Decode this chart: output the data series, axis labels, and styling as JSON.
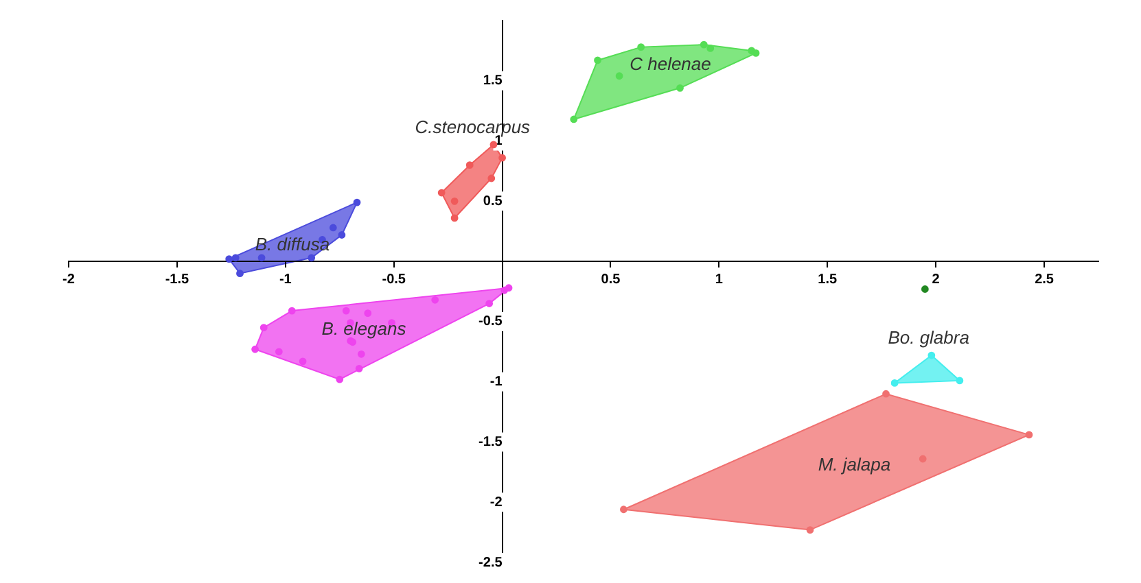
{
  "chart_data": {
    "type": "scatter",
    "xlim": [
      -2,
      2.75
    ],
    "ylim": [
      -2.5,
      2
    ],
    "xticks": [
      -2,
      -1.5,
      -1,
      -0.5,
      0.5,
      1,
      1.5,
      2,
      2.5
    ],
    "yticks": [
      -2.5,
      -2,
      -1.5,
      -1,
      -0.5,
      0.5,
      1,
      1.5
    ],
    "grid": false,
    "legend": false,
    "marker": "circle",
    "series": [
      {
        "name": "B. diffusa",
        "color": "#4b4bdc",
        "x": [
          -1.26,
          -1.23,
          -1.21,
          -1.11,
          -0.88,
          -0.83,
          -0.78,
          -0.74,
          -0.67
        ],
        "values": [
          0.02,
          0.03,
          -0.1,
          0.03,
          0.03,
          0.18,
          0.28,
          0.22,
          0.49
        ]
      },
      {
        "name": "B. elegans",
        "color": "#ee44ee",
        "x": [
          -0.97,
          -1.1,
          -1.14,
          -1.03,
          -0.92,
          -0.75,
          -0.66,
          -0.65,
          -0.7,
          -0.69,
          -0.7,
          -0.72,
          -0.62,
          -0.51,
          -0.31,
          -0.06,
          0.01,
          0.03
        ],
        "values": [
          -0.41,
          -0.55,
          -0.73,
          -0.75,
          -0.83,
          -0.98,
          -0.89,
          -0.77,
          -0.66,
          -0.67,
          -0.51,
          -0.41,
          -0.43,
          -0.51,
          -0.32,
          -0.35,
          -0.24,
          -0.22
        ]
      },
      {
        "name": "C.stenocarpus",
        "color": "#f05a5a",
        "x": [
          -0.04,
          0,
          -0.15,
          -0.05,
          -0.28,
          -0.22,
          -0.22
        ],
        "values": [
          0.97,
          0.86,
          0.8,
          0.69,
          0.57,
          0.5,
          0.36
        ]
      },
      {
        "name": "C helenae",
        "color": "#55dd55",
        "x": [
          0.44,
          0.64,
          0.93,
          0.96,
          1.15,
          1.17,
          0.54,
          0.82,
          0.33
        ],
        "values": [
          1.67,
          1.78,
          1.8,
          1.77,
          1.75,
          1.73,
          1.54,
          1.44,
          1.18
        ]
      },
      {
        "color": "#228822",
        "x": [
          1.95
        ],
        "values": [
          -0.23
        ]
      },
      {
        "name": "Bo. glabra",
        "color": "#44eeee",
        "x": [
          1.98,
          1.81,
          2.11
        ],
        "values": [
          -0.78,
          -1.01,
          -0.99
        ]
      },
      {
        "name": "M. jalapa",
        "color": "#f07070",
        "x": [
          1.77,
          2.43,
          1.94,
          1.42,
          0.56
        ],
        "values": [
          -1.1,
          -1.44,
          -1.64,
          -2.23,
          -2.06
        ]
      }
    ]
  }
}
